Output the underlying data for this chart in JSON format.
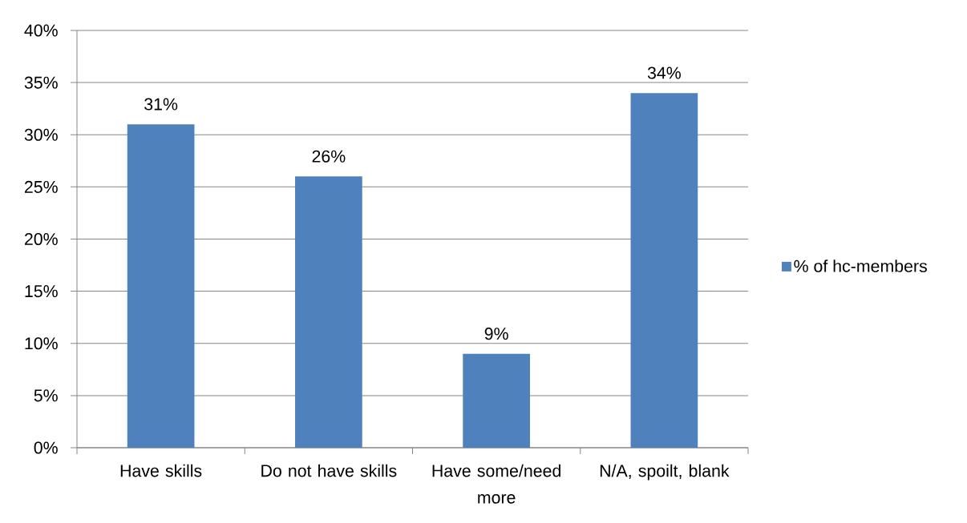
{
  "chart_data": {
    "type": "bar",
    "categories": [
      "Have skills",
      "Do not have skills",
      "Have some/need more",
      "N/A, spoilt, blank"
    ],
    "series": [
      {
        "name": "% of hc-members",
        "color": "#4f81bd",
        "values": [
          31,
          26,
          9,
          34
        ],
        "value_labels": [
          "31%",
          "26%",
          "9%",
          "34%"
        ]
      }
    ],
    "ylim": [
      0,
      40
    ],
    "yticks": [
      {
        "value": 0,
        "label": "0%"
      },
      {
        "value": 5,
        "label": "5%"
      },
      {
        "value": 10,
        "label": "10%"
      },
      {
        "value": 15,
        "label": "15%"
      },
      {
        "value": 20,
        "label": "20%"
      },
      {
        "value": 25,
        "label": "25%"
      },
      {
        "value": 30,
        "label": "30%"
      },
      {
        "value": 35,
        "label": "35%"
      },
      {
        "value": 40,
        "label": "40%"
      }
    ],
    "grid": "y",
    "legend": "right"
  }
}
